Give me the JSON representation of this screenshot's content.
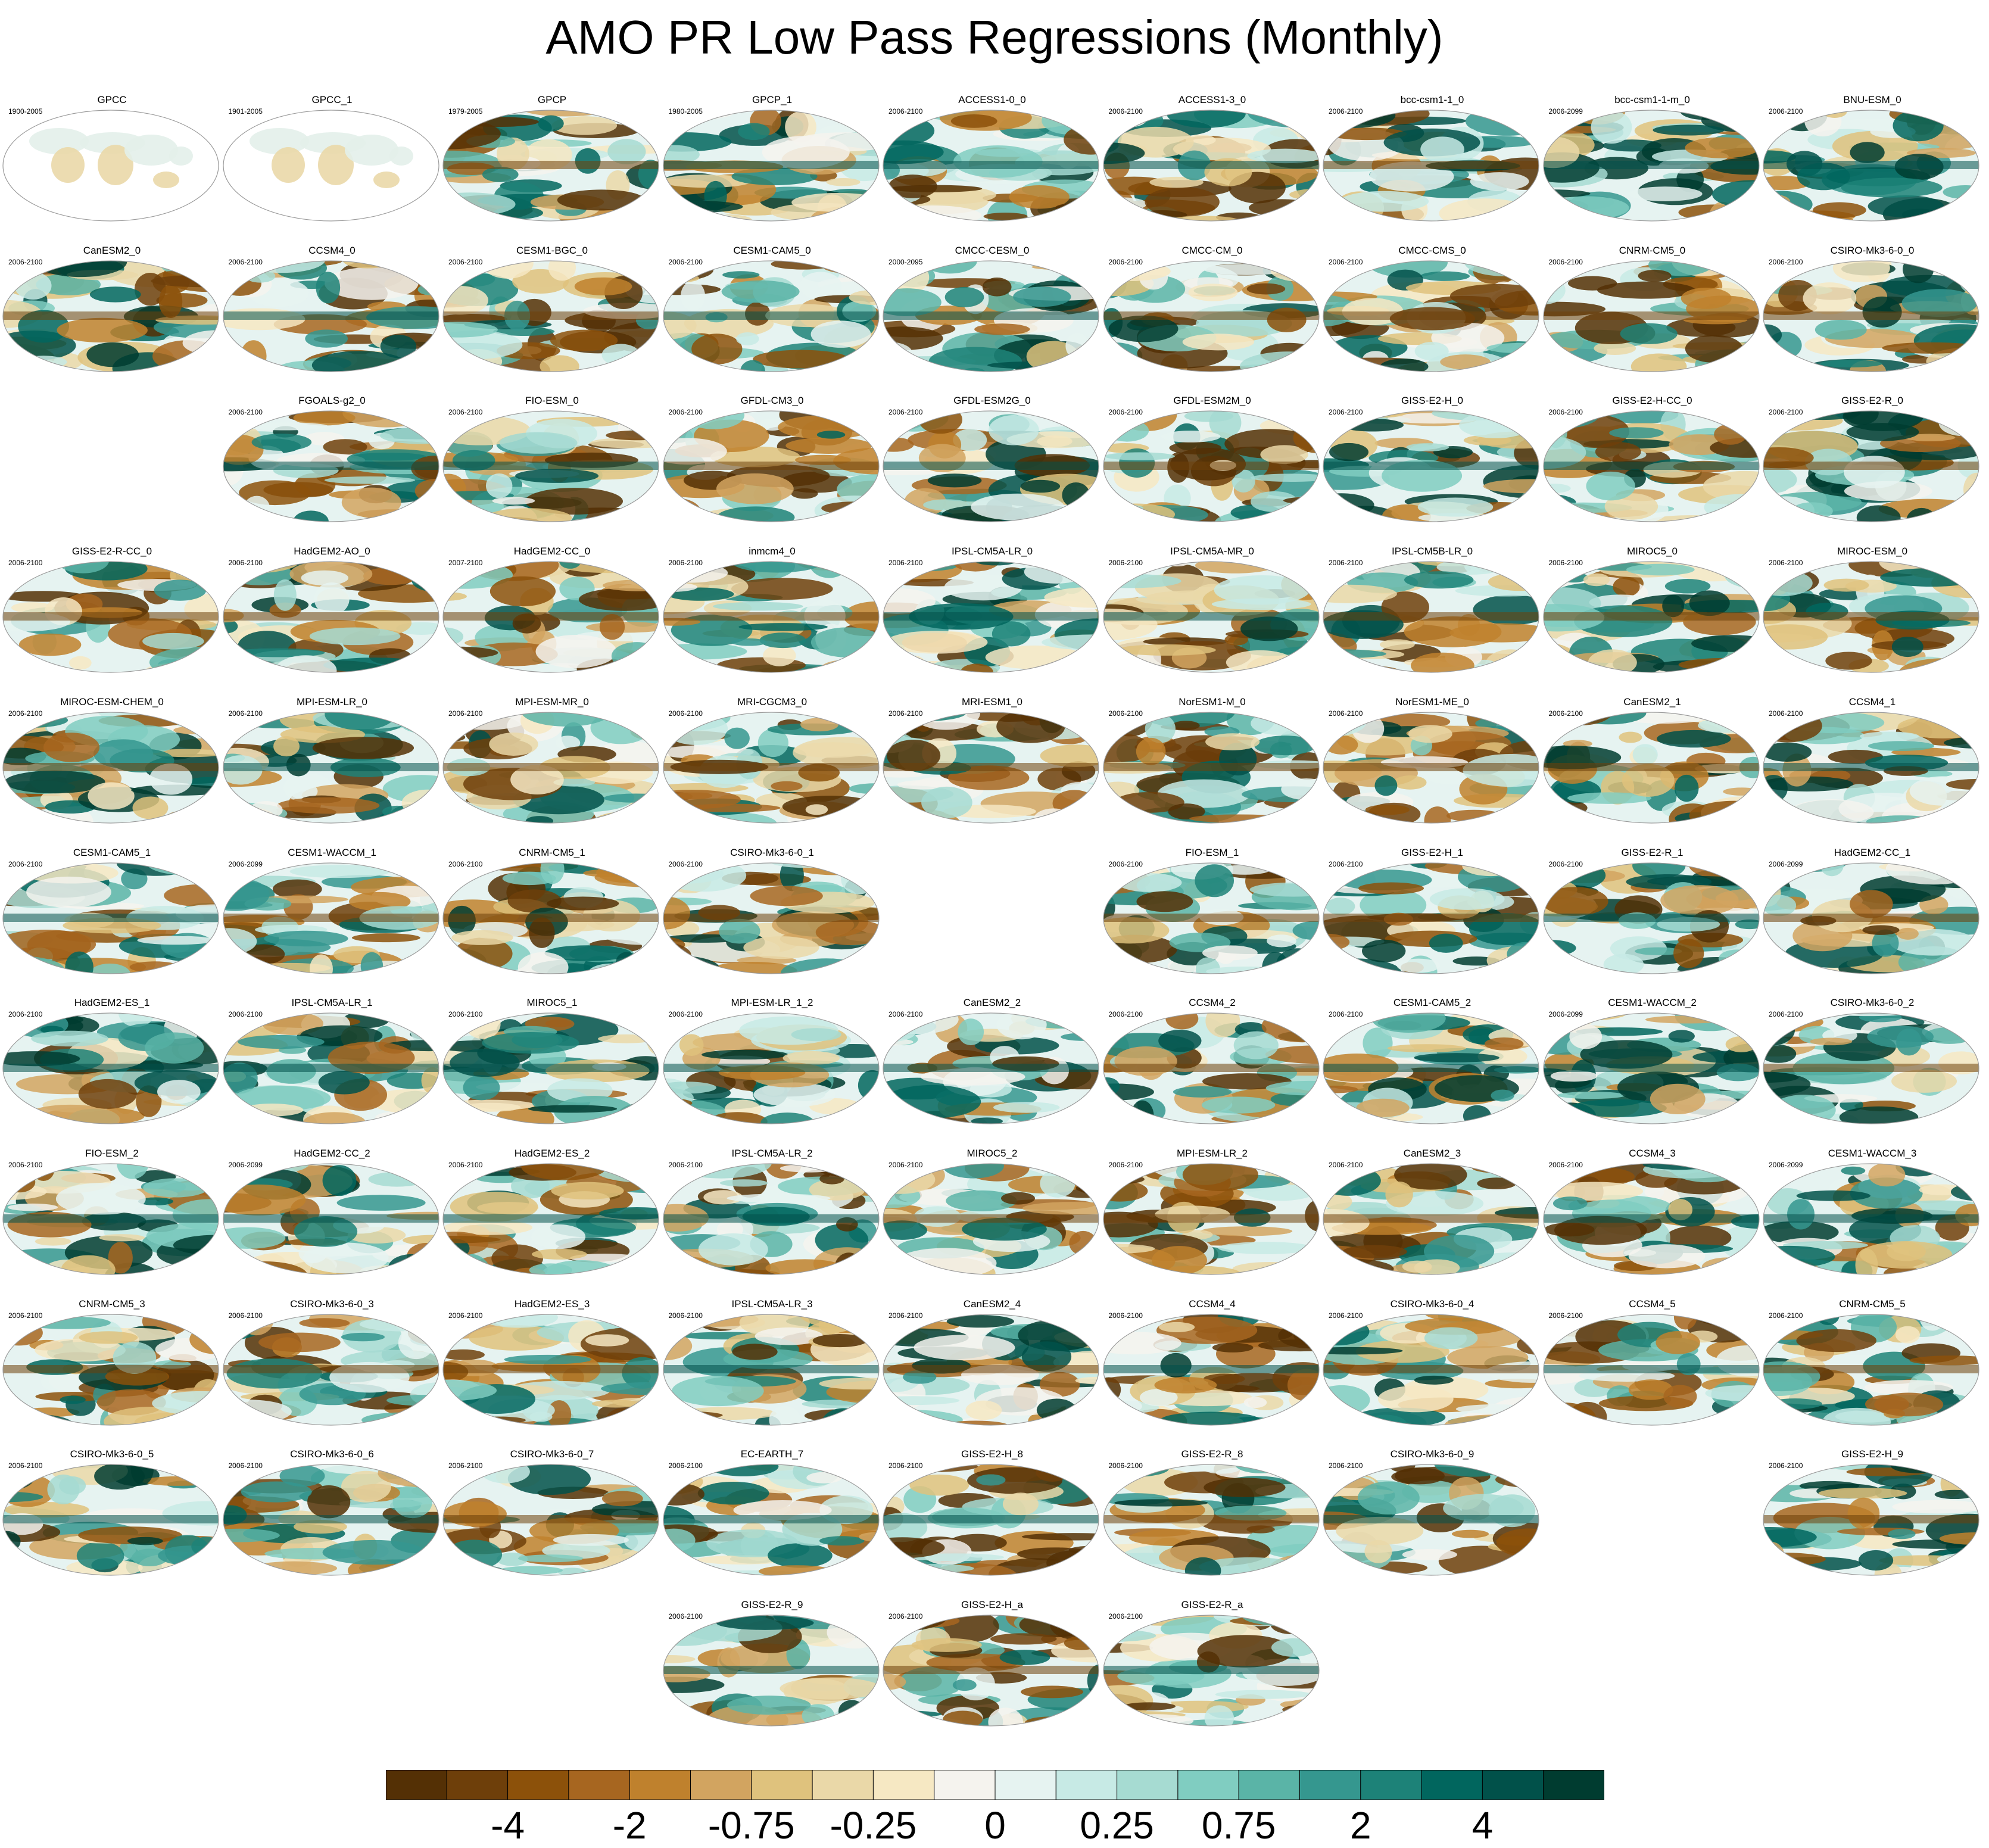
{
  "title": "AMO PR Low Pass Regressions (Monthly)",
  "chart_data": {
    "type": "heatmap",
    "title": "AMO PR Low Pass Regressions (Monthly)",
    "projection": "global map (robinson-like)",
    "colorbar": {
      "tick_labels": [
        "-4",
        "-2",
        "-0.75",
        "-0.25",
        "0",
        "0.25",
        "0.75",
        "2",
        "4"
      ],
      "levels": [
        -4,
        -2,
        -0.75,
        -0.25,
        0,
        0.25,
        0.75,
        2,
        4
      ],
      "colors": [
        "#543005",
        "#6e3f0a",
        "#8c510a",
        "#a76620",
        "#bf812d",
        "#d2a460",
        "#dfc27d",
        "#ead8a8",
        "#f6e8c3",
        "#f5f3ee",
        "#e6f3f1",
        "#c7eae5",
        "#a6dbd2",
        "#80cdc1",
        "#5ab4a7",
        "#35978f",
        "#1d8278",
        "#01665e",
        "#01514a",
        "#003c30"
      ]
    },
    "panels": [
      {
        "name": "GPCC",
        "period": "1900-2005",
        "row": 0,
        "col": 0
      },
      {
        "name": "GPCC_1",
        "period": "1901-2005",
        "row": 0,
        "col": 1
      },
      {
        "name": "GPCP",
        "period": "1979-2005",
        "row": 0,
        "col": 2
      },
      {
        "name": "GPCP_1",
        "period": "1980-2005",
        "row": 0,
        "col": 3
      },
      {
        "name": "ACCESS1-0_0",
        "period": "2006-2100",
        "row": 0,
        "col": 4
      },
      {
        "name": "ACCESS1-3_0",
        "period": "2006-2100",
        "row": 0,
        "col": 5
      },
      {
        "name": "bcc-csm1-1_0",
        "period": "2006-2100",
        "row": 0,
        "col": 6
      },
      {
        "name": "bcc-csm1-1-m_0",
        "period": "2006-2099",
        "row": 0,
        "col": 7
      },
      {
        "name": "BNU-ESM_0",
        "period": "2006-2100",
        "row": 0,
        "col": 8
      },
      {
        "name": "CanESM2_0",
        "period": "2006-2100",
        "row": 1,
        "col": 0
      },
      {
        "name": "CCSM4_0",
        "period": "2006-2100",
        "row": 1,
        "col": 1
      },
      {
        "name": "CESM1-BGC_0",
        "period": "2006-2100",
        "row": 1,
        "col": 2
      },
      {
        "name": "CESM1-CAM5_0",
        "period": "2006-2100",
        "row": 1,
        "col": 3
      },
      {
        "name": "CMCC-CESM_0",
        "period": "2000-2095",
        "row": 1,
        "col": 4
      },
      {
        "name": "CMCC-CM_0",
        "period": "2006-2100",
        "row": 1,
        "col": 5
      },
      {
        "name": "CMCC-CMS_0",
        "period": "2006-2100",
        "row": 1,
        "col": 6
      },
      {
        "name": "CNRM-CM5_0",
        "period": "2006-2100",
        "row": 1,
        "col": 7
      },
      {
        "name": "CSIRO-Mk3-6-0_0",
        "period": "2006-2100",
        "row": 1,
        "col": 8
      },
      {
        "name": "FGOALS-g2_0",
        "period": "2006-2100",
        "row": 2,
        "col": 1
      },
      {
        "name": "FIO-ESM_0",
        "period": "2006-2100",
        "row": 2,
        "col": 2
      },
      {
        "name": "GFDL-CM3_0",
        "period": "2006-2100",
        "row": 2,
        "col": 3
      },
      {
        "name": "GFDL-ESM2G_0",
        "period": "2006-2100",
        "row": 2,
        "col": 4
      },
      {
        "name": "GFDL-ESM2M_0",
        "period": "2006-2100",
        "row": 2,
        "col": 5
      },
      {
        "name": "GISS-E2-H_0",
        "period": "2006-2100",
        "row": 2,
        "col": 6
      },
      {
        "name": "GISS-E2-H-CC_0",
        "period": "2006-2100",
        "row": 2,
        "col": 7
      },
      {
        "name": "GISS-E2-R_0",
        "period": "2006-2100",
        "row": 2,
        "col": 8
      },
      {
        "name": "GISS-E2-R-CC_0",
        "period": "2006-2100",
        "row": 3,
        "col": 0
      },
      {
        "name": "HadGEM2-AO_0",
        "period": "2006-2100",
        "row": 3,
        "col": 1
      },
      {
        "name": "HadGEM2-CC_0",
        "period": "2007-2100",
        "row": 3,
        "col": 2
      },
      {
        "name": "inmcm4_0",
        "period": "2006-2100",
        "row": 3,
        "col": 3
      },
      {
        "name": "IPSL-CM5A-LR_0",
        "period": "2006-2100",
        "row": 3,
        "col": 4
      },
      {
        "name": "IPSL-CM5A-MR_0",
        "period": "2006-2100",
        "row": 3,
        "col": 5
      },
      {
        "name": "IPSL-CM5B-LR_0",
        "period": "2006-2100",
        "row": 3,
        "col": 6
      },
      {
        "name": "MIROC5_0",
        "period": "2006-2100",
        "row": 3,
        "col": 7
      },
      {
        "name": "MIROC-ESM_0",
        "period": "2006-2100",
        "row": 3,
        "col": 8
      },
      {
        "name": "MIROC-ESM-CHEM_0",
        "period": "2006-2100",
        "row": 4,
        "col": 0
      },
      {
        "name": "MPI-ESM-LR_0",
        "period": "2006-2100",
        "row": 4,
        "col": 1
      },
      {
        "name": "MPI-ESM-MR_0",
        "period": "2006-2100",
        "row": 4,
        "col": 2
      },
      {
        "name": "MRI-CGCM3_0",
        "period": "2006-2100",
        "row": 4,
        "col": 3
      },
      {
        "name": "MRI-ESM1_0",
        "period": "2006-2100",
        "row": 4,
        "col": 4
      },
      {
        "name": "NorESM1-M_0",
        "period": "2006-2100",
        "row": 4,
        "col": 5
      },
      {
        "name": "NorESM1-ME_0",
        "period": "2006-2100",
        "row": 4,
        "col": 6
      },
      {
        "name": "CanESM2_1",
        "period": "2006-2100",
        "row": 4,
        "col": 7
      },
      {
        "name": "CCSM4_1",
        "period": "2006-2100",
        "row": 4,
        "col": 8
      },
      {
        "name": "CESM1-CAM5_1",
        "period": "2006-2100",
        "row": 5,
        "col": 0
      },
      {
        "name": "CESM1-WACCM_1",
        "period": "2006-2099",
        "row": 5,
        "col": 1
      },
      {
        "name": "CNRM-CM5_1",
        "period": "2006-2100",
        "row": 5,
        "col": 2
      },
      {
        "name": "CSIRO-Mk3-6-0_1",
        "period": "2006-2100",
        "row": 5,
        "col": 3
      },
      {
        "name": "FIO-ESM_1",
        "period": "2006-2100",
        "row": 5,
        "col": 5
      },
      {
        "name": "GISS-E2-H_1",
        "period": "2006-2100",
        "row": 5,
        "col": 6
      },
      {
        "name": "GISS-E2-R_1",
        "period": "2006-2100",
        "row": 5,
        "col": 7
      },
      {
        "name": "HadGEM2-CC_1",
        "period": "2006-2099",
        "row": 5,
        "col": 8
      },
      {
        "name": "HadGEM2-ES_1",
        "period": "2006-2100",
        "row": 6,
        "col": 0
      },
      {
        "name": "IPSL-CM5A-LR_1",
        "period": "2006-2100",
        "row": 6,
        "col": 1
      },
      {
        "name": "MIROC5_1",
        "period": "2006-2100",
        "row": 6,
        "col": 2
      },
      {
        "name": "MPI-ESM-LR_1_2",
        "period": "2006-2100",
        "row": 6,
        "col": 3
      },
      {
        "name": "CanESM2_2",
        "period": "2006-2100",
        "row": 6,
        "col": 4
      },
      {
        "name": "CCSM4_2",
        "period": "2006-2100",
        "row": 6,
        "col": 5
      },
      {
        "name": "CESM1-CAM5_2",
        "period": "2006-2100",
        "row": 6,
        "col": 6
      },
      {
        "name": "CESM1-WACCM_2",
        "period": "2006-2099",
        "row": 6,
        "col": 7
      },
      {
        "name": "CSIRO-Mk3-6-0_2",
        "period": "2006-2100",
        "row": 6,
        "col": 8
      },
      {
        "name": "FIO-ESM_2",
        "period": "2006-2100",
        "row": 7,
        "col": 0
      },
      {
        "name": "HadGEM2-CC_2",
        "period": "2006-2099",
        "row": 7,
        "col": 1
      },
      {
        "name": "HadGEM2-ES_2",
        "period": "2006-2100",
        "row": 7,
        "col": 2
      },
      {
        "name": "IPSL-CM5A-LR_2",
        "period": "2006-2100",
        "row": 7,
        "col": 3
      },
      {
        "name": "MIROC5_2",
        "period": "2006-2100",
        "row": 7,
        "col": 4
      },
      {
        "name": "MPI-ESM-LR_2",
        "period": "2006-2100",
        "row": 7,
        "col": 5
      },
      {
        "name": "CanESM2_3",
        "period": "2006-2100",
        "row": 7,
        "col": 6
      },
      {
        "name": "CCSM4_3",
        "period": "2006-2100",
        "row": 7,
        "col": 7
      },
      {
        "name": "CESM1-WACCM_3",
        "period": "2006-2099",
        "row": 7,
        "col": 8
      },
      {
        "name": "CNRM-CM5_3",
        "period": "2006-2100",
        "row": 8,
        "col": 0
      },
      {
        "name": "CSIRO-Mk3-6-0_3",
        "period": "2006-2100",
        "row": 8,
        "col": 1
      },
      {
        "name": "HadGEM2-ES_3",
        "period": "2006-2100",
        "row": 8,
        "col": 2
      },
      {
        "name": "IPSL-CM5A-LR_3",
        "period": "2006-2100",
        "row": 8,
        "col": 3
      },
      {
        "name": "CanESM2_4",
        "period": "2006-2100",
        "row": 8,
        "col": 4
      },
      {
        "name": "CCSM4_4",
        "period": "2006-2100",
        "row": 8,
        "col": 5
      },
      {
        "name": "CSIRO-Mk3-6-0_4",
        "period": "2006-2100",
        "row": 8,
        "col": 6
      },
      {
        "name": "CCSM4_5",
        "period": "2006-2100",
        "row": 8,
        "col": 7
      },
      {
        "name": "CNRM-CM5_5",
        "period": "2006-2100",
        "row": 8,
        "col": 8
      },
      {
        "name": "CSIRO-Mk3-6-0_5",
        "period": "2006-2100",
        "row": 9,
        "col": 0
      },
      {
        "name": "CSIRO-Mk3-6-0_6",
        "period": "2006-2100",
        "row": 9,
        "col": 1
      },
      {
        "name": "CSIRO-Mk3-6-0_7",
        "period": "2006-2100",
        "row": 9,
        "col": 2
      },
      {
        "name": "EC-EARTH_7",
        "period": "2006-2100",
        "row": 9,
        "col": 3
      },
      {
        "name": "GISS-E2-H_8",
        "period": "2006-2100",
        "row": 9,
        "col": 4
      },
      {
        "name": "GISS-E2-R_8",
        "period": "2006-2100",
        "row": 9,
        "col": 5
      },
      {
        "name": "CSIRO-Mk3-6-0_9",
        "period": "2006-2100",
        "row": 9,
        "col": 6
      },
      {
        "name": "GISS-E2-H_9",
        "period": "2006-2100",
        "row": 9,
        "col": 8
      },
      {
        "name": "GISS-E2-R_9",
        "period": "2006-2100",
        "row": 10,
        "col": 3
      },
      {
        "name": "GISS-E2-H_a",
        "period": "2006-2100",
        "row": 10,
        "col": 4
      },
      {
        "name": "GISS-E2-R_a",
        "period": "2006-2100",
        "row": 10,
        "col": 5
      }
    ]
  }
}
